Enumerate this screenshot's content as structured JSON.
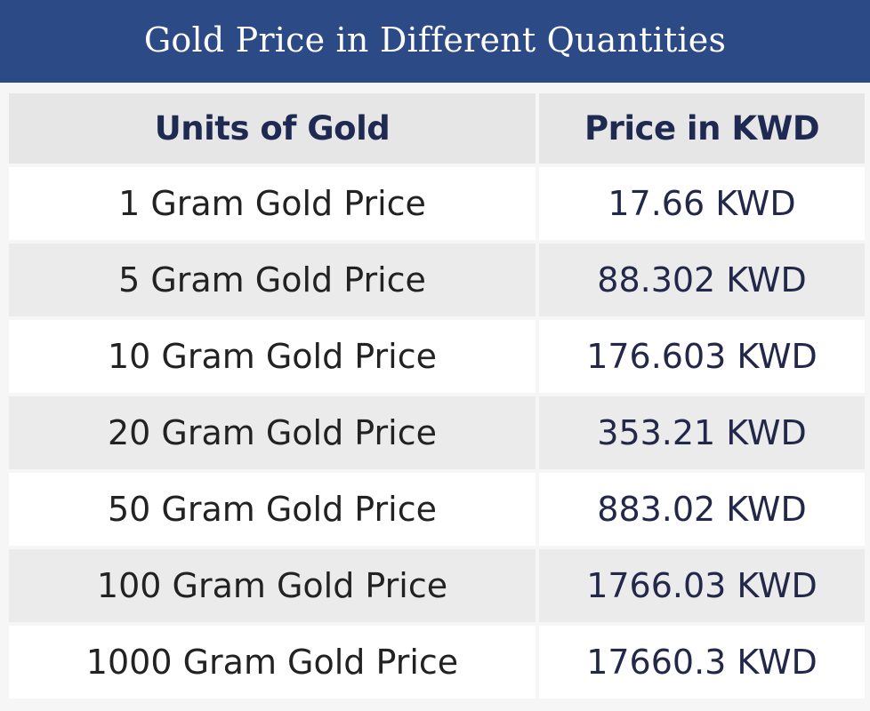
{
  "title": "Gold Price in Different Quantities",
  "colors": {
    "header_bar": "#2c4a86",
    "header_row_bg": "#e6e6e6",
    "row_alt_bg": "#ebebeb",
    "row_bg": "#ffffff"
  },
  "table": {
    "headers": [
      "Units of Gold",
      "Price in KWD"
    ],
    "rows": [
      {
        "unit": "1 Gram Gold Price",
        "price": "17.66 KWD"
      },
      {
        "unit": "5 Gram Gold Price",
        "price": "88.302 KWD"
      },
      {
        "unit": "10 Gram Gold Price",
        "price": "176.603 KWD"
      },
      {
        "unit": "20 Gram Gold Price",
        "price": "353.21 KWD"
      },
      {
        "unit": "50 Gram Gold Price",
        "price": "883.02 KWD"
      },
      {
        "unit": "100 Gram Gold Price",
        "price": "1766.03 KWD"
      },
      {
        "unit": "1000 Gram Gold Price",
        "price": "17660.3 KWD"
      }
    ]
  }
}
